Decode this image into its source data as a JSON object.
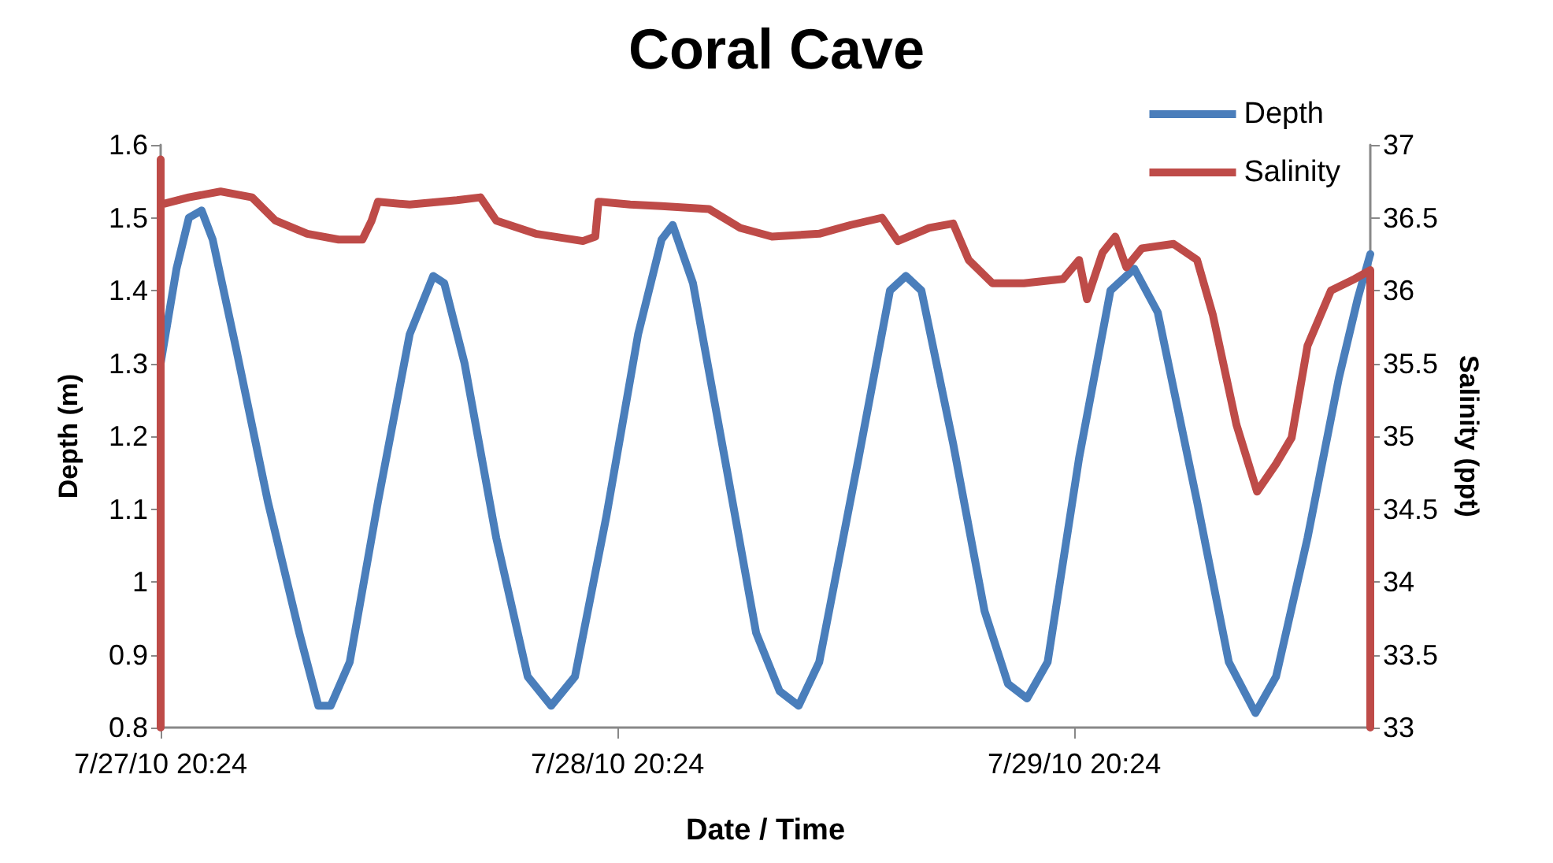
{
  "chart_data": {
    "type": "line",
    "title": "Coral Cave",
    "xlabel": "Date / Time",
    "ylabel": "Depth (m)",
    "y2label": "Salinity (ppt)",
    "xlim": [
      "--07-27T20:24",
      "--07-30T11:57"
    ],
    "xticks": [
      {
        "value": "--07-27T20:24",
        "label": "7/27/10 20:24"
      },
      {
        "value": "--07-28T20:24",
        "label": "7/28/10 20:24"
      },
      {
        "value": "--07-29T20:24",
        "label": "7/29/10 20:24"
      }
    ],
    "ylim": [
      0.8,
      1.6
    ],
    "yticks": [
      0.8,
      0.9,
      1,
      1.1,
      1.2,
      1.3,
      1.4,
      1.5,
      1.6
    ],
    "y2lim": [
      33,
      37
    ],
    "y2ticks": [
      33,
      33.5,
      34,
      34.5,
      35,
      35.5,
      36,
      36.5,
      37
    ],
    "grid": false,
    "legend": "top right",
    "marker": "none",
    "line_style": "solid",
    "series": [
      {
        "name": "Depth",
        "color": "#4a7ebb",
        "x": [
          "--07-27T20:24",
          "--07-27T21:14",
          "--07-27T21:53",
          "--07-27T22:33",
          "--07-27T23:08",
          "--07-28T00:22",
          "--07-28T02:02",
          "--07-28T03:41",
          "--07-28T04:41",
          "--07-28T05:20",
          "--07-28T06:20",
          "--07-28T07:49",
          "--07-28T09:29",
          "--07-28T10:43",
          "--07-28T11:18",
          "--07-28T12:22",
          "--07-28T14:02",
          "--07-28T15:41",
          "--07-28T16:55",
          "--07-28T18:10",
          "--07-28T19:49",
          "--07-28T21:29",
          "--07-28T22:43",
          "--07-28T23:18",
          "--07-29T00:22",
          "--07-29T02:02",
          "--07-29T03:41",
          "--07-29T04:55",
          "--07-29T05:55",
          "--07-29T07:00",
          "--07-29T09:04",
          "--07-29T10:43",
          "--07-29T11:33",
          "--07-29T12:22",
          "--07-29T14:02",
          "--07-29T15:41",
          "--07-29T16:55",
          "--07-29T17:55",
          "--07-29T19:00",
          "--07-29T20:39",
          "--07-29T22:18",
          "--07-29T23:33",
          "--07-30T00:47",
          "--07-30T02:51",
          "--07-30T04:31",
          "--07-30T05:55",
          "--07-30T07:00",
          "--07-30T08:39",
          "--07-30T10:18",
          "--07-30T11:18",
          "--07-30T11:57"
        ],
        "values": [
          1.3,
          1.43,
          1.5,
          1.51,
          1.47,
          1.32,
          1.11,
          0.93,
          0.83,
          0.83,
          0.89,
          1.11,
          1.34,
          1.42,
          1.41,
          1.3,
          1.06,
          0.87,
          0.83,
          0.87,
          1.09,
          1.34,
          1.47,
          1.49,
          1.41,
          1.17,
          0.93,
          0.85,
          0.83,
          0.89,
          1.17,
          1.4,
          1.42,
          1.4,
          1.19,
          0.96,
          0.86,
          0.84,
          0.89,
          1.17,
          1.4,
          1.43,
          1.37,
          1.11,
          0.89,
          0.82,
          0.87,
          1.06,
          1.28,
          1.39,
          1.45
        ]
      },
      {
        "name": "Salinity",
        "color": "#be4b48",
        "axis": "y2",
        "x": [
          "--07-27T20:24",
          "--07-27T20:24",
          "--07-27T20:24",
          "--07-27T21:53",
          "--07-27T23:33",
          "--07-28T01:12",
          "--07-28T02:26",
          "--07-28T04:06",
          "--07-28T05:45",
          "--07-28T07:00",
          "--07-28T07:29",
          "--07-28T07:49",
          "--07-28T09:29",
          "--07-28T11:58",
          "--07-28T13:12",
          "--07-28T14:02",
          "--07-28T16:06",
          "--07-28T18:35",
          "--07-28T19:14",
          "--07-28T19:24",
          "--07-28T21:04",
          "--07-28T22:43",
          "--07-29T01:12",
          "--07-29T02:51",
          "--07-29T04:31",
          "--07-29T07:00",
          "--07-29T08:39",
          "--07-29T10:18",
          "--07-29T11:08",
          "--07-29T12:47",
          "--07-29T14:02",
          "--07-29T14:51",
          "--07-29T16:06",
          "--07-29T17:45",
          "--07-29T19:49",
          "--07-29T20:39",
          "--07-29T21:04",
          "--07-29T21:53",
          "--07-29T22:33",
          "--07-29T23:08",
          "--07-29T23:57",
          "--07-30T01:37",
          "--07-30T02:51",
          "--07-30T03:41",
          "--07-30T04:55",
          "--07-30T06:00",
          "--07-30T07:00",
          "--07-30T07:49",
          "--07-30T08:39",
          "--07-30T09:53",
          "--07-30T11:08",
          "--07-30T11:57",
          "--07-30T11:57"
        ],
        "values": [
          33,
          36.9,
          36.59,
          36.64,
          36.68,
          36.64,
          36.48,
          36.39,
          36.35,
          36.35,
          36.48,
          36.61,
          36.59,
          36.62,
          36.64,
          36.48,
          36.39,
          36.34,
          36.37,
          36.61,
          36.59,
          36.58,
          36.56,
          36.43,
          36.37,
          36.39,
          36.45,
          36.5,
          36.34,
          36.43,
          36.46,
          36.21,
          36.05,
          36.05,
          36.08,
          36.21,
          35.94,
          36.26,
          36.37,
          36.16,
          36.29,
          36.32,
          36.21,
          35.83,
          35.08,
          34.62,
          34.81,
          34.99,
          35.62,
          36.0,
          36.08,
          36.14,
          33
        ]
      }
    ]
  }
}
